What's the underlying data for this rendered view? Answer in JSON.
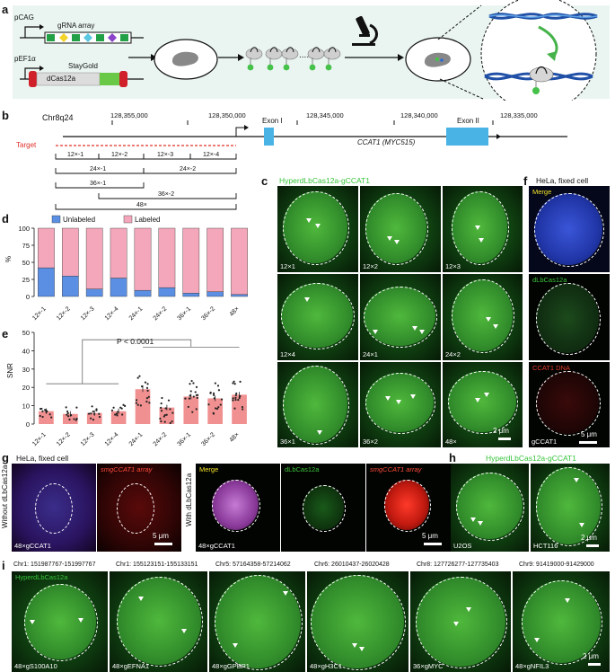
{
  "panel_a": {
    "label": "a",
    "pcag": "pCAG",
    "grna_array": "gRNA array",
    "pef1a": "pEF1α",
    "dcas12a": "dCas12a",
    "staygold": "StayGold"
  },
  "panel_b": {
    "label": "b",
    "chrom": "Chr8q24",
    "coords": [
      "128,355,000",
      "128,350,000",
      "128,345,000",
      "128,340,000",
      "128,335,000"
    ],
    "exon1": "Exon I",
    "exon2": "Exon II",
    "gene": "CCAT1",
    "gene_alias": "(MYC515)",
    "target": "Target",
    "segments": [
      "12×-1",
      "12×-2",
      "12×-3",
      "12×-4",
      "24×-1",
      "24×-2",
      "36×-1",
      "36×-2",
      "48×"
    ]
  },
  "panel_c": {
    "label": "c",
    "title": "HyperdLbCas12a-gCCAT1",
    "tiles": [
      "12×1",
      "12×2",
      "12×3",
      "12×4",
      "24×1",
      "24×2",
      "36×1",
      "36×2",
      "48×"
    ],
    "scale": "2 μm"
  },
  "panel_d": {
    "label": "d"
  },
  "panel_e": {
    "label": "e",
    "pvalue": "P < 0.0001"
  },
  "panel_f": {
    "label": "f",
    "title": "HeLa, fixed cell",
    "merge": "Merge",
    "channel2": "dLbCas12a",
    "channel3": "CCAT1 DNA",
    "footer": "gCCAT1",
    "scale": "5 μm"
  },
  "panel_g": {
    "label": "g",
    "title": "HeLa, fixed cell",
    "side1": "Without dLbCas12a",
    "side2": "With dLbCas12a",
    "smg1": "smgCCAT1 array",
    "merge": "Merge",
    "dlb": "dLbCas12a",
    "smg2": "smgCCAT1 array",
    "footer1": "48×gCCAT1",
    "footer2": "48×gCCAT1",
    "scale": "5 μm"
  },
  "panel_h": {
    "label": "h",
    "title": "HyperdLbCas12a-gCCAT1",
    "tile1": "U2OS",
    "tile2": "HCT116",
    "scale": "2 μm"
  },
  "panel_i": {
    "label": "i",
    "channel": "HyperdLbCas12a",
    "tiles": [
      {
        "coord": "Chr1: 151987767-151997767",
        "name": "48×gS100A10"
      },
      {
        "coord": "Chr1: 155123151-155133151",
        "name": "48×gEFNA1"
      },
      {
        "coord": "Chr5: 57164358-57214062",
        "name": "48×gGPBP1"
      },
      {
        "coord": "Chr6: 26010437-26020428",
        "name": "48×gH3C1"
      },
      {
        "coord": "Chr8: 127726277-127735403",
        "name": "36×gMYC"
      },
      {
        "coord": "Chr9: 91419000-91429000",
        "name": "48×gNFIL3"
      }
    ],
    "scale": "2 μm"
  },
  "chart_data": [
    {
      "type": "bar",
      "panel": "d",
      "categories": [
        "12×-1",
        "12×-2",
        "12×-3",
        "12×-4",
        "24×-1",
        "24×-2",
        "36×-1",
        "36×-2",
        "48×"
      ],
      "series": [
        {
          "name": "Unlabeled",
          "values": [
            42,
            30,
            11,
            27,
            9,
            13,
            5,
            7,
            3
          ],
          "color": "#5b8fe3"
        },
        {
          "name": "Labeled",
          "values": [
            58,
            70,
            89,
            73,
            91,
            87,
            95,
            93,
            97
          ],
          "color": "#f4a7bb"
        }
      ],
      "ylabel": "%",
      "ylim": [
        0,
        100
      ],
      "yticks": [
        0,
        25,
        50,
        75,
        100
      ],
      "stacked": true,
      "legend": "top"
    },
    {
      "type": "bar",
      "panel": "e",
      "categories": [
        "12×-1",
        "12×-2",
        "12×-3",
        "12×-4",
        "24×-1",
        "24×-2",
        "36×-1",
        "36×-2",
        "48×"
      ],
      "values": [
        7,
        5.5,
        6,
        7,
        19,
        9,
        15,
        14,
        16
      ],
      "color": "#f09090",
      "ylabel": "SNR",
      "ylim": [
        0,
        50
      ],
      "yticks": [
        0,
        10,
        20,
        30,
        40,
        50
      ]
    }
  ]
}
